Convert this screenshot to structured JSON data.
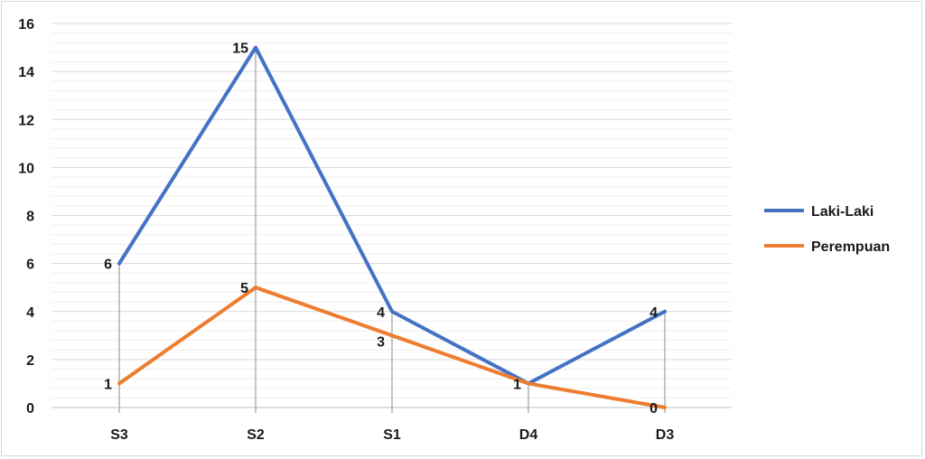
{
  "chart_data": {
    "type": "line",
    "categories": [
      "S3",
      "S2",
      "S1",
      "D4",
      "D3"
    ],
    "ylim": [
      0,
      16
    ],
    "ytick_step": 2,
    "yticks": [
      "0",
      "2",
      "4",
      "6",
      "8",
      "10",
      "12",
      "14",
      "16"
    ],
    "grid": true,
    "legend_position": "right",
    "series": [
      {
        "name": "Laki-Laki",
        "color": "#4472c4",
        "values": [
          6,
          15,
          4,
          1,
          4
        ]
      },
      {
        "name": "Perempuan",
        "color": "#ed7d31",
        "values": [
          1,
          5,
          3,
          1,
          0
        ]
      }
    ],
    "drop_lines": true
  }
}
